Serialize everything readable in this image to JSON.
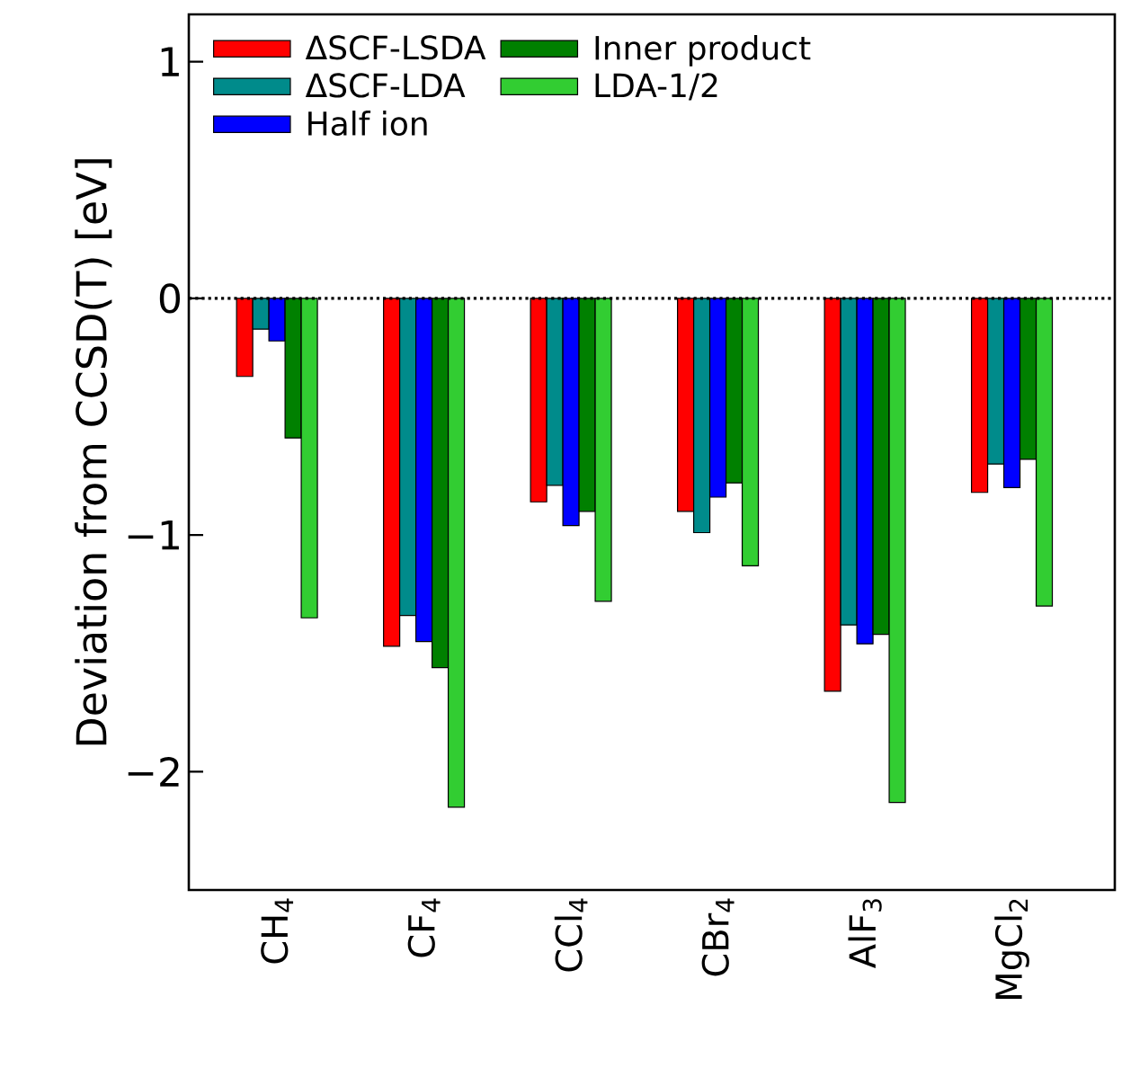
{
  "chart_data": {
    "type": "bar",
    "ylabel": "Deviation from CCSD(T) [eV]",
    "categories": [
      "CH$_{4}$",
      "CF$_{4}$",
      "CCl$_{4}$",
      "CBr$_{4}$",
      "AlF$_{3}$",
      "MgCl$_{2}$"
    ],
    "series": [
      {
        "name": "ΔSCF-LSDA",
        "color": "#ff0000",
        "values": [
          -0.33,
          -1.47,
          -0.86,
          -0.9,
          -1.66,
          -0.82
        ]
      },
      {
        "name": "ΔSCF-LDA",
        "color": "#008b8b",
        "values": [
          -0.13,
          -1.34,
          -0.79,
          -0.99,
          -1.38,
          -0.7
        ]
      },
      {
        "name": "Half ion",
        "color": "#0000ff",
        "values": [
          -0.18,
          -1.45,
          -0.96,
          -0.84,
          -1.46,
          -0.8
        ]
      },
      {
        "name": "Inner product",
        "color": "#008000",
        "values": [
          -0.59,
          -1.56,
          -0.9,
          -0.78,
          -1.42,
          -0.68
        ]
      },
      {
        "name": "LDA-1/2",
        "color": "#32cd32",
        "values": [
          -1.35,
          -2.15,
          -1.28,
          -1.13,
          -2.13,
          -1.3
        ]
      }
    ],
    "ylim": [
      -2.5,
      1.2
    ],
    "yticks": [
      {
        "value": -2,
        "label": "−2"
      },
      {
        "value": -1,
        "label": "−1"
      },
      0,
      1
    ],
    "ref_lines": [
      {
        "axis": "y",
        "value": 0,
        "line_style": "dotted",
        "color": "#000000"
      }
    ],
    "legend": "top",
    "grid": false
  }
}
